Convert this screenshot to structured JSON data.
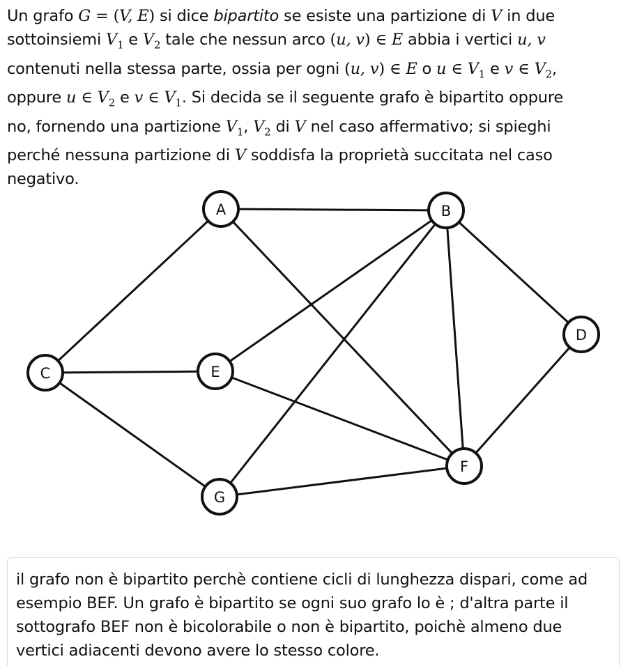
{
  "question": {
    "lines": [
      "Un grafo G = (V, E) si dice bipartito se esiste una partizione di V in due",
      "sottoinsiemi V1 e V2 tale che nessun arco (u, v) ∈ E abbia i vertici u, v",
      "contenuti nella stessa parte, ossia per ogni (u, v) ∈ E o u ∈ V1 e v ∈ V2,",
      "oppure u ∈ V2 e v ∈ V1. Si decida se il seguente grafo è bipartito oppure",
      "no, fornendo una partizione V1, V2 di V nel caso affermativo; si spieghi",
      "perché nessuna partizione di V soddisfa la proprietà succitata nel caso",
      "negativo."
    ]
  },
  "graph": {
    "nodes": [
      "A",
      "B",
      "C",
      "D",
      "E",
      "F",
      "G"
    ],
    "edges": [
      [
        "A",
        "B"
      ],
      [
        "A",
        "C"
      ],
      [
        "A",
        "F"
      ],
      [
        "B",
        "E"
      ],
      [
        "B",
        "F"
      ],
      [
        "B",
        "D"
      ],
      [
        "B",
        "G"
      ],
      [
        "C",
        "E"
      ],
      [
        "C",
        "G"
      ],
      [
        "E",
        "F"
      ],
      [
        "D",
        "F"
      ],
      [
        "G",
        "F"
      ]
    ]
  },
  "answer": {
    "lines": [
      "il grafo non è bipartito perchè contiene cicli di lunghezza dispari, come ad",
      "esempio BEF. Un grafo è bipartito se ogni suo grafo lo è ; d'altra parte il",
      "sottografo BEF non è bicolorabile o non è bipartito, poichè almeno due",
      "vertici adiacenti devono avere lo stesso colore."
    ]
  }
}
